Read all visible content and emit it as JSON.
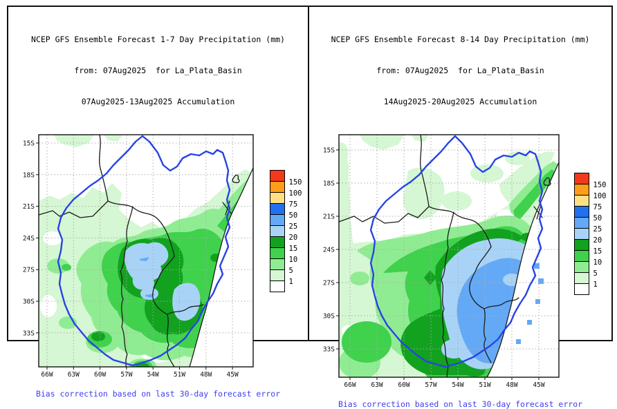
{
  "figure": {
    "background": "#ffffff",
    "border_color": "#111111",
    "caption_color": "#3d3df2",
    "basin_outline_color": "#2743e6",
    "grid_color": "#ababab"
  },
  "panels": [
    {
      "name": "week1",
      "title_line1": "NCEP GFS Ensemble Forecast 1-7 Day Precipitation (mm)",
      "title_line2": "from: 07Aug2025  for La_Plata_Basin",
      "title_line3": "07Aug2025-13Aug2025 Accumulation",
      "caption": "Bias correction based on last 30-day forecast error",
      "lat_ticks": [
        "15S",
        "18S",
        "21S",
        "24S",
        "27S",
        "30S",
        "33S"
      ],
      "lon_ticks": [
        "66W",
        "63W",
        "60W",
        "57W",
        "54W",
        "51W",
        "48W",
        "45W"
      ],
      "legend": {
        "labels": [
          "150",
          "100",
          "75",
          "50",
          "25",
          "20",
          "15",
          "10",
          "5",
          "1"
        ],
        "colors": [
          "#f4381c",
          "#ff9e1b",
          "#ffe083",
          "#2270ee",
          "#64a9f6",
          "#a9d3f6",
          "#12a21f",
          "#40d14d",
          "#90ec92",
          "#d5f7d3",
          "#ffffff"
        ]
      }
    },
    {
      "name": "week2",
      "title_line1": "NCEP GFS Ensemble Forecast 8-14 Day Precipitation (mm)",
      "title_line2": "from: 07Aug2025  for La_Plata_Basin",
      "title_line3": "14Aug2025-20Aug2025 Accumulation",
      "caption": "Bias correction based on last 30-day forecast error",
      "lat_ticks": [
        "15S",
        "18S",
        "21S",
        "24S",
        "27S",
        "30S",
        "33S"
      ],
      "lon_ticks": [
        "66W",
        "63W",
        "60W",
        "57W",
        "54W",
        "51W",
        "48W",
        "45W"
      ],
      "legend": {
        "labels": [
          "150",
          "100",
          "75",
          "50",
          "25",
          "20",
          "15",
          "10",
          "5",
          "1"
        ],
        "colors": [
          "#f4381c",
          "#ff9e1b",
          "#ffe083",
          "#2270ee",
          "#64a9f6",
          "#a9d3f6",
          "#12a21f",
          "#40d14d",
          "#90ec92",
          "#d5f7d3",
          "#ffffff"
        ]
      }
    }
  ],
  "chart_data": [
    {
      "type": "filled-contour-map",
      "title": "NCEP GFS Ensemble Forecast 1-7 Day Precipitation (mm)",
      "init_date": "07Aug2025",
      "valid_period": "07Aug2025-13Aug2025 Accumulation",
      "region": "La_Plata_Basin",
      "units": "mm",
      "lat_tick_labels": [
        "15S",
        "18S",
        "21S",
        "24S",
        "27S",
        "30S",
        "33S"
      ],
      "lon_tick_labels": [
        "66W",
        "63W",
        "60W",
        "57W",
        "54W",
        "51W",
        "48W",
        "45W"
      ],
      "contour_levels_mm": [
        1,
        5,
        10,
        15,
        20,
        25,
        50,
        75,
        100,
        150
      ],
      "level_colors": {
        "<1": "#ffffff",
        "1-5": "#d5f7d3",
        "5-10": "#90ec92",
        "10-15": "#40d14d",
        "15-20": "#12a21f",
        "20-25": "#a9d3f6",
        "25-50": "#64a9f6",
        "50-75": "#2270ee",
        "75-100": "#ffe083",
        "100-150": "#ff9e1b",
        ">150": "#f4381c"
      },
      "features": [
        "Maximum patches of 20-25 mm over eastern Paraguay (~57-54W, 25-27S) and over Rio Grande do Sul (~53-51W, 28-30S), with tiny 25+ mm specks",
        "15-20 mm dark-green cores surrounding the 20-25 mm patches",
        "Broad 5-15 mm precipitation over the central and southern basin (Paraguay, NE Argentina, Uruguay, S Brazil)",
        "1-5 mm fringe over western Argentina/Bolivia and along the NE coastal strip",
        "Less than 1 mm (white) over the northern basin interior and far northeast"
      ],
      "caption": "Bias correction based on last 30-day forecast error",
      "legend_position": "right",
      "grid": "dotted lat/lon graticule every 3 degrees",
      "outlines": [
        "thick blue La Plata basin boundary",
        "thin black country borders and coastline"
      ]
    },
    {
      "type": "filled-contour-map",
      "title": "NCEP GFS Ensemble Forecast 8-14 Day Precipitation (mm)",
      "init_date": "07Aug2025",
      "valid_period": "14Aug2025-20Aug2025 Accumulation",
      "region": "La_Plata_Basin",
      "units": "mm",
      "lat_tick_labels": [
        "15S",
        "18S",
        "21S",
        "24S",
        "27S",
        "30S",
        "33S"
      ],
      "lon_tick_labels": [
        "66W",
        "63W",
        "60W",
        "57W",
        "54W",
        "51W",
        "48W",
        "45W"
      ],
      "contour_levels_mm": [
        1,
        5,
        10,
        15,
        20,
        25,
        50,
        75,
        100,
        150
      ],
      "level_colors": {
        "<1": "#ffffff",
        "1-5": "#d5f7d3",
        "5-10": "#90ec92",
        "10-15": "#40d14d",
        "15-20": "#12a21f",
        "20-25": "#a9d3f6",
        "25-50": "#64a9f6",
        "50-75": "#2270ee",
        "75-100": "#ffe083",
        "100-150": "#ff9e1b",
        ">150": "#f4381c"
      },
      "features": [
        "Large 20-25 mm light-blue area over SE basin (eastern Paraguay, S Brazil, Uruguay, NE Argentina)",
        "25-50 mm medium-blue core over its southeastern half (~54-50W, 26-32S) reaching the Atlantic coast",
        "Thick 15-20 mm dark-green band wrapping the blue area on its north and west sides plus a dark-green mass near 60-57W, 30-33S",
        "5-15 mm greens over the central-western basin",
        "1-5 mm fringe along the far west and northeast; <1 mm (white) over the northern interior"
      ],
      "caption": "Bias correction based on last 30-day forecast error",
      "legend_position": "right",
      "grid": "dotted lat/lon graticule every 3 degrees",
      "outlines": [
        "thick blue La Plata basin boundary",
        "thin black country borders and coastline"
      ]
    }
  ]
}
